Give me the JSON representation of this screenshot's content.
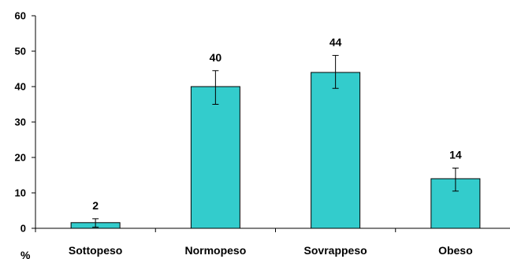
{
  "chart_data": {
    "type": "bar",
    "title": "",
    "xlabel": "",
    "ylabel": "%",
    "categories": [
      "Sottopeso",
      "Normopeso",
      "Sovrappeso",
      "Obeso"
    ],
    "values": [
      1.6,
      40,
      44,
      14
    ],
    "data_labels": [
      "2",
      "40",
      "44",
      "14"
    ],
    "error_low": [
      0.3,
      35,
      39.5,
      10.5
    ],
    "error_high": [
      2.7,
      44.5,
      48.8,
      17
    ],
    "ylim": [
      0,
      60
    ],
    "yticks": [
      "0",
      "10",
      "20",
      "30",
      "40",
      "50",
      "60"
    ],
    "grid": false,
    "bar_color": "#33CCCC",
    "bar_outline_color": "#000000"
  }
}
